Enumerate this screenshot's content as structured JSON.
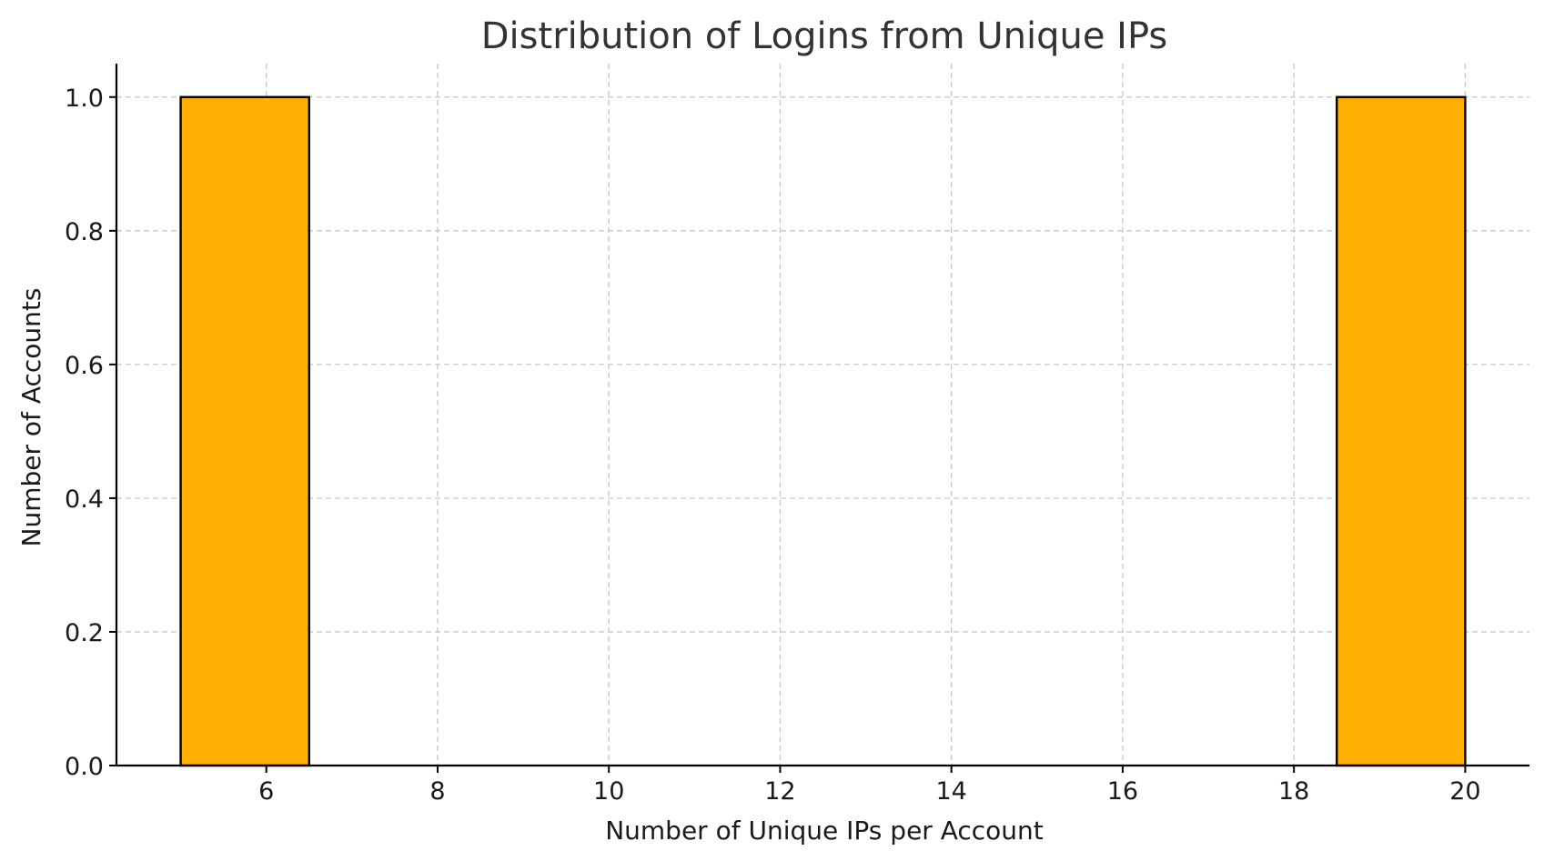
{
  "chart_data": {
    "type": "bar",
    "title": "Distribution of Logins from Unique IPs",
    "xlabel": "Number of Unique IPs per Account",
    "ylabel": "Number of Accounts",
    "xlim": [
      4.25,
      20.75
    ],
    "ylim": [
      0,
      1.05
    ],
    "xticks": [
      6,
      8,
      10,
      12,
      14,
      16,
      18,
      20
    ],
    "xtick_labels": [
      "6",
      "8",
      "10",
      "12",
      "14",
      "16",
      "18",
      "20"
    ],
    "yticks": [
      0,
      0.2,
      0.4,
      0.6,
      0.8,
      1.0
    ],
    "ytick_labels": [
      "0.0",
      "0.2",
      "0.4",
      "0.6",
      "0.8",
      "1.0"
    ],
    "bins": [
      {
        "x0": 5,
        "x1": 6.5,
        "value": 1
      },
      {
        "x0": 18.5,
        "x1": 20,
        "value": 1
      }
    ],
    "bar_color": "#ffb000",
    "edge_color": "#000000",
    "grid": true,
    "grid_style": "dashed"
  }
}
